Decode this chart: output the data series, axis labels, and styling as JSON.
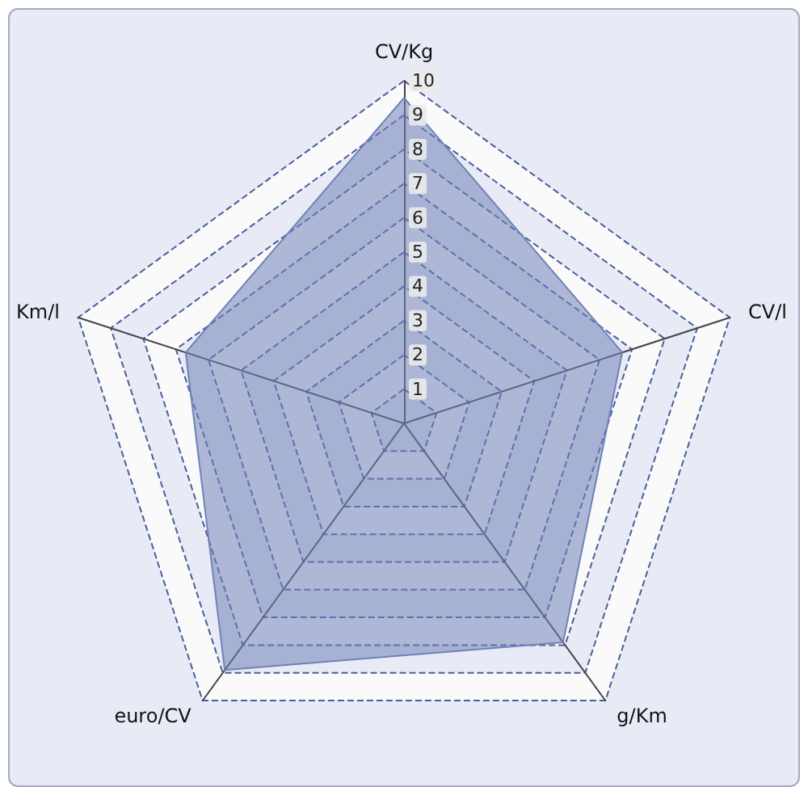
{
  "chart_data": {
    "type": "radar",
    "categories": [
      "CV/Kg",
      "CV/l",
      "g/Km",
      "euro/CV",
      "Km/l"
    ],
    "series": [
      {
        "color": "#6f82b8",
        "values": [
          9.5,
          6.7,
          7.9,
          8.9,
          6.7
        ]
      }
    ],
    "ylim": [
      0,
      10
    ],
    "yticks": [
      1,
      2,
      3,
      4,
      5,
      6,
      7,
      8,
      9,
      10
    ],
    "grid": true,
    "marker": "none"
  }
}
